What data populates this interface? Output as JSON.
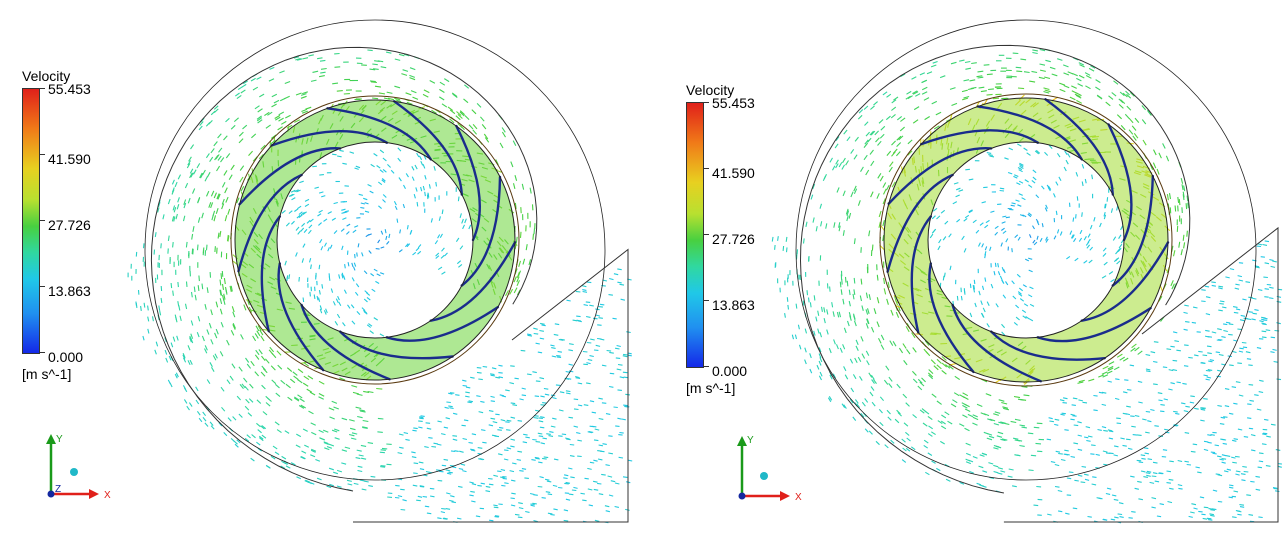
{
  "panels": [
    {
      "legend": {
        "title": "Velocity",
        "ticks": [
          "55.453",
          "41.590",
          "27.726",
          "13.863",
          "0.000"
        ],
        "units": "[m s^-1]"
      },
      "triad": {
        "x": "X",
        "y": "Y",
        "z": "Z"
      }
    },
    {
      "legend": {
        "title": "Velocity",
        "ticks": [
          "55.453",
          "41.590",
          "27.726",
          "13.863",
          "0.000"
        ],
        "units": "[m s^-1]"
      },
      "triad": {
        "x": "X",
        "y": "Y",
        "z": "Z"
      }
    }
  ],
  "colors": {
    "max": "#e0201a",
    "high": "#e8d020",
    "mid": "#48d040",
    "low": "#20c8e8",
    "min": "#1428e8",
    "blade": "#1a2c8c",
    "outline": "#333333"
  }
}
